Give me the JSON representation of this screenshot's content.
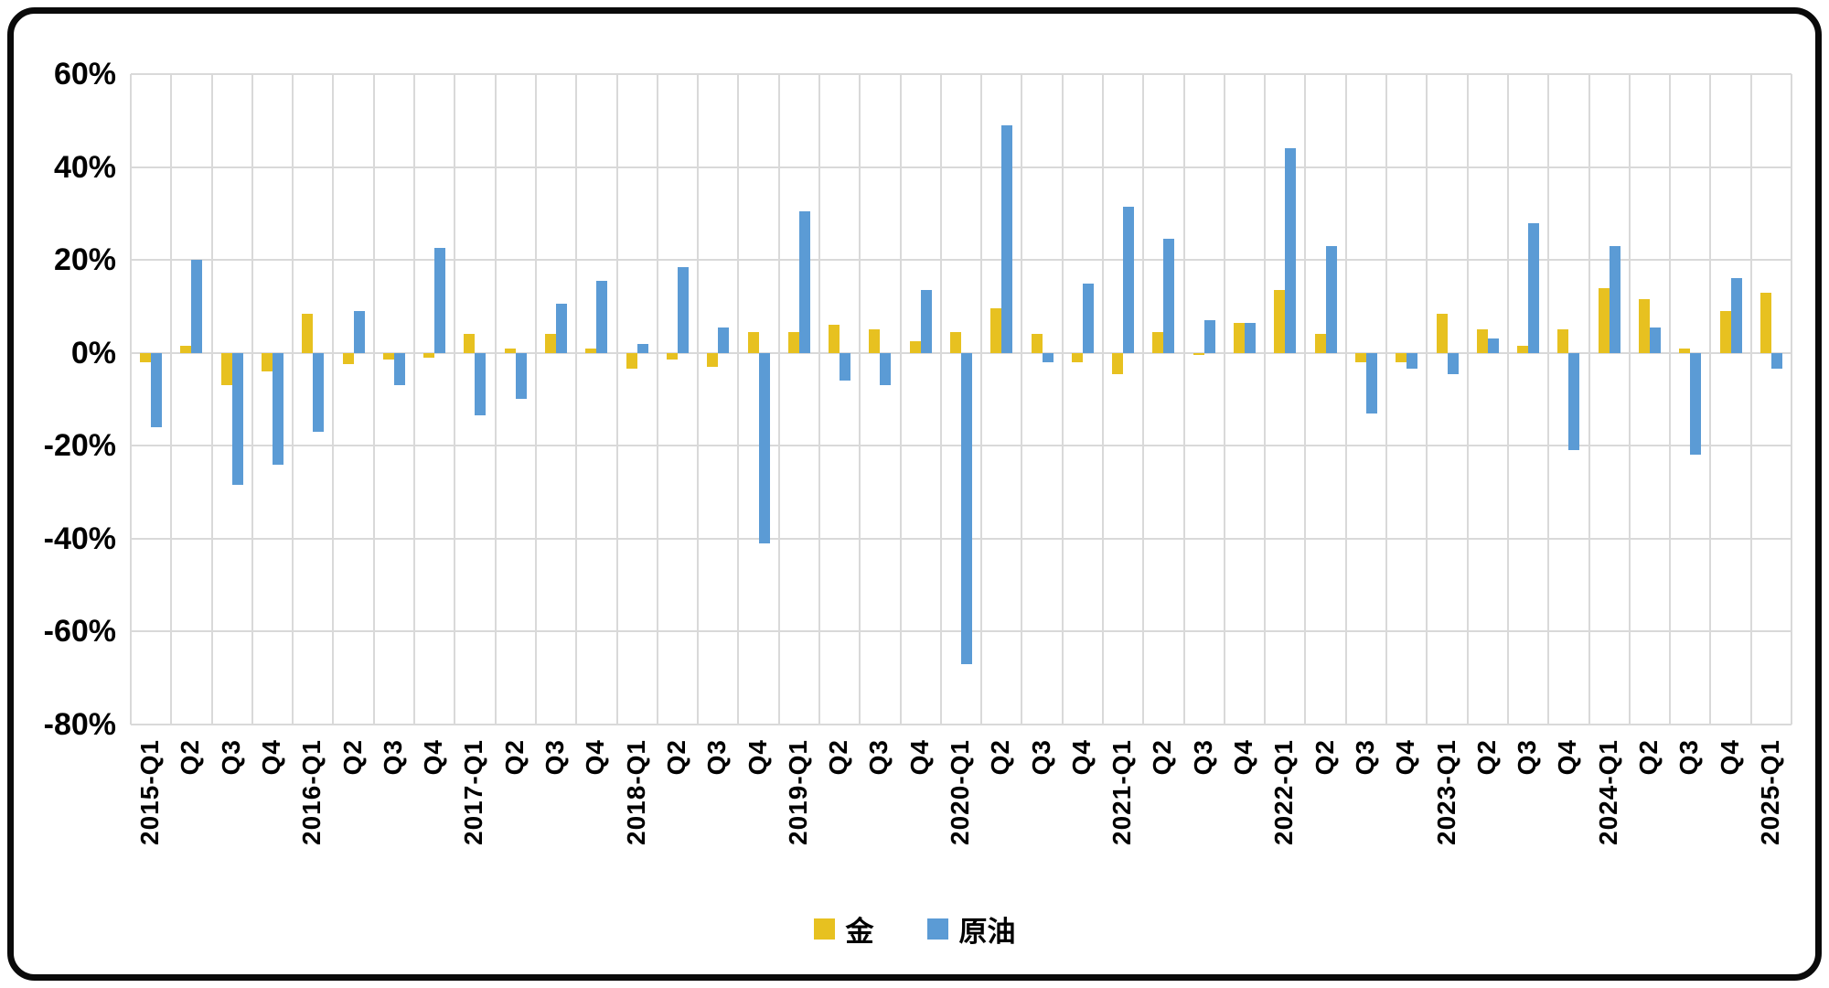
{
  "chart_data": {
    "type": "bar",
    "title": "",
    "xlabel": "",
    "ylabel": "",
    "categories": [
      "2015-Q1",
      "Q2",
      "Q3",
      "Q4",
      "2016-Q1",
      "Q2",
      "Q3",
      "Q4",
      "2017-Q1",
      "Q2",
      "Q3",
      "Q4",
      "2018-Q1",
      "Q2",
      "Q3",
      "Q4",
      "2019-Q1",
      "Q2",
      "Q3",
      "Q4",
      "2020-Q1",
      "Q2",
      "Q3",
      "Q4",
      "2021-Q1",
      "Q2",
      "Q3",
      "Q4",
      "2022-Q1",
      "Q2",
      "Q3",
      "Q4",
      "2023-Q1",
      "Q2",
      "Q3",
      "Q4",
      "2024-Q1",
      "Q2",
      "Q3",
      "Q4",
      "2025-Q1"
    ],
    "series": [
      {
        "name": "金",
        "color": "#e7c120",
        "values": [
          -2,
          1.5,
          -7,
          -4,
          8.5,
          -2.5,
          -1.5,
          -1,
          4,
          1,
          4,
          1,
          -3.5,
          -1.5,
          -3,
          4.5,
          4.5,
          6,
          5,
          2.5,
          4.5,
          9.5,
          4,
          -2,
          -4.5,
          4.5,
          -0.5,
          6.5,
          13.5,
          4,
          -2,
          -2,
          8.5,
          5,
          1.5,
          5,
          14,
          11.5,
          1,
          9,
          13
        ]
      },
      {
        "name": "原油",
        "color": "#5b9bd5",
        "values": [
          -16,
          20,
          -28.5,
          -24,
          -17,
          9,
          -7,
          22.5,
          -13.5,
          -10,
          10.5,
          15.5,
          2,
          18.5,
          5.5,
          -41,
          30.5,
          -6,
          -7,
          13.5,
          -67,
          49,
          -2,
          15,
          31.5,
          24.5,
          7,
          6.5,
          44,
          23,
          -13,
          -3.5,
          -4.5,
          3,
          28,
          -21,
          23,
          5.5,
          -22,
          16,
          -3.5
        ]
      }
    ],
    "ylim": [
      -80,
      60
    ],
    "y_step": 20,
    "y_tick_labels": [
      "60%",
      "40%",
      "20%",
      "0%",
      "-20%",
      "-40%",
      "-60%",
      "-80%"
    ],
    "grid": true,
    "legend_position": "bottom"
  },
  "legend": {
    "gold_label": "金",
    "oil_label": "原油"
  },
  "colors": {
    "gold": "#e7c120",
    "oil": "#5b9bd5",
    "gridline": "#d9d9d9",
    "frame_border": "#0a0a0a",
    "background": "#ffffff",
    "text": "#000000"
  }
}
